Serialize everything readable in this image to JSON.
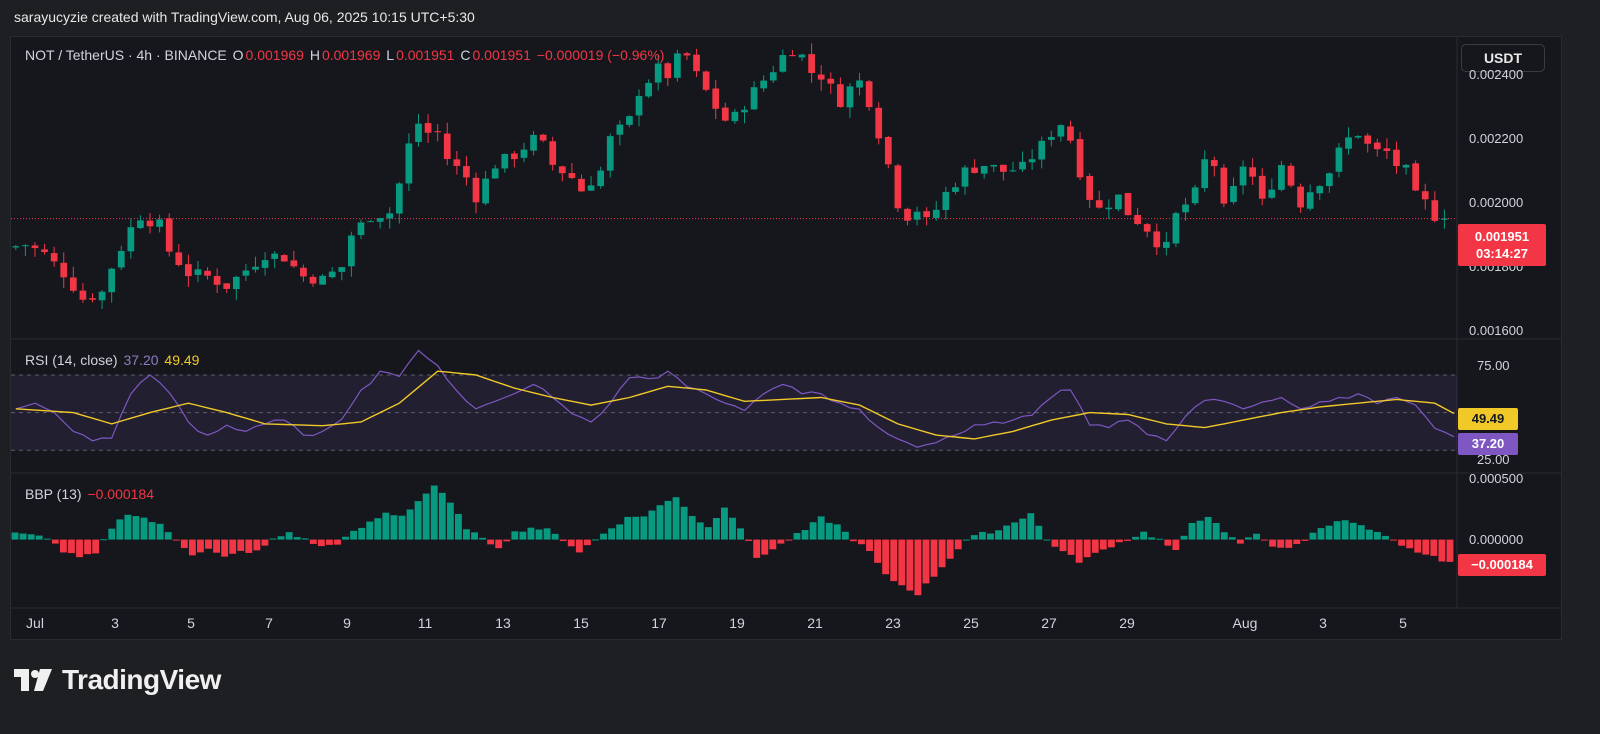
{
  "caption": "sarayucyzie created with TradingView.com, Aug 06, 2025 10:15 UTC+5:30",
  "header": {
    "symbol": "NOT / TetherUS · 4h · BINANCE",
    "o_label": "O",
    "o_value": "0.001969",
    "h_label": "H",
    "h_value": "0.001969",
    "l_label": "L",
    "l_value": "0.001951",
    "c_label": "C",
    "c_value": "0.001951",
    "change": "−0.000019 (−0.96%)"
  },
  "currency_button": "USDT",
  "price_tag": {
    "price": "0.001951",
    "countdown": "03:14:27"
  },
  "rsi_legend": {
    "label": "RSI (14, close)",
    "rsi": "37.20",
    "ma": "49.49"
  },
  "bbp_legend": {
    "label": "BBP (13)",
    "value": "−0.000184"
  },
  "brand": "TradingView",
  "colors": {
    "up": "#089981",
    "down": "#f23645",
    "rsi": "#7e57c2",
    "rsi_ma": "#f0c929",
    "bg": "#16171c"
  },
  "chart_data": [
    {
      "type": "candlestick",
      "y_ticks": [
        "0.002400",
        "0.002200",
        "0.002000",
        "0.001800",
        "0.001600"
      ],
      "ylim": [
        0.00158,
        0.00252
      ],
      "x_ticks": [
        "Jul",
        "3",
        "5",
        "7",
        "9",
        "11",
        "13",
        "15",
        "17",
        "19",
        "21",
        "23",
        "25",
        "27",
        "29",
        "Aug",
        "3",
        "5"
      ],
      "current_price": 0.001951,
      "close_path": [
        [
          0,
          0.00186
        ],
        [
          2,
          0.00187
        ],
        [
          4,
          0.00184
        ],
        [
          6,
          0.00178
        ],
        [
          8,
          0.0017
        ],
        [
          10,
          0.00172
        ],
        [
          11,
          0.0018
        ],
        [
          13,
          0.00192
        ],
        [
          14,
          0.00196
        ],
        [
          16,
          0.00193
        ],
        [
          17,
          0.00185
        ],
        [
          19,
          0.00178
        ],
        [
          21,
          0.00177
        ],
        [
          23,
          0.00174
        ],
        [
          25,
          0.00179
        ],
        [
          27,
          0.00184
        ],
        [
          29,
          0.00183
        ],
        [
          31,
          0.00177
        ],
        [
          33,
          0.00176
        ],
        [
          35,
          0.0018
        ],
        [
          36,
          0.0019
        ],
        [
          38,
          0.00196
        ],
        [
          40,
          0.00197
        ],
        [
          41,
          0.00206
        ],
        [
          42,
          0.00218
        ],
        [
          43,
          0.00225
        ],
        [
          44,
          0.00222
        ],
        [
          45,
          0.00222
        ],
        [
          46,
          0.00214
        ],
        [
          48,
          0.00208
        ],
        [
          49,
          0.00202
        ],
        [
          51,
          0.00212
        ],
        [
          53,
          0.00215
        ],
        [
          55,
          0.0022
        ],
        [
          56,
          0.00218
        ],
        [
          57,
          0.00212
        ],
        [
          59,
          0.00208
        ],
        [
          60,
          0.00204
        ],
        [
          62,
          0.0021
        ],
        [
          63,
          0.0022
        ],
        [
          65,
          0.00226
        ],
        [
          66,
          0.00235
        ],
        [
          68,
          0.00242
        ],
        [
          69,
          0.0024
        ],
        [
          70,
          0.00245
        ],
        [
          71,
          0.00246
        ],
        [
          72,
          0.0024
        ],
        [
          74,
          0.0023
        ],
        [
          75,
          0.00226
        ],
        [
          76,
          0.00227
        ],
        [
          78,
          0.00235
        ],
        [
          80,
          0.00242
        ],
        [
          81,
          0.00246
        ],
        [
          82,
          0.00248
        ],
        [
          83,
          0.00246
        ],
        [
          84,
          0.00241
        ],
        [
          85,
          0.0024
        ],
        [
          86,
          0.00236
        ],
        [
          87,
          0.00232
        ],
        [
          88,
          0.00236
        ],
        [
          89,
          0.00238
        ],
        [
          90,
          0.00232
        ],
        [
          91,
          0.00222
        ],
        [
          92,
          0.00212
        ],
        [
          93,
          0.002
        ],
        [
          94,
          0.00196
        ],
        [
          95,
          0.00198
        ],
        [
          96,
          0.00194
        ],
        [
          97,
          0.00198
        ],
        [
          98,
          0.00203
        ],
        [
          100,
          0.0021
        ],
        [
          102,
          0.00212
        ],
        [
          104,
          0.0021
        ],
        [
          106,
          0.00211
        ],
        [
          108,
          0.00218
        ],
        [
          109,
          0.00222
        ],
        [
          110,
          0.00225
        ],
        [
          111,
          0.0022
        ],
        [
          112,
          0.0021
        ],
        [
          113,
          0.00202
        ],
        [
          114,
          0.00198
        ],
        [
          116,
          0.00202
        ],
        [
          117,
          0.00197
        ],
        [
          119,
          0.00192
        ],
        [
          120,
          0.00188
        ],
        [
          121,
          0.00186
        ],
        [
          122,
          0.00196
        ],
        [
          124,
          0.00203
        ],
        [
          125,
          0.00213
        ],
        [
          126,
          0.00212
        ],
        [
          127,
          0.00198
        ],
        [
          128,
          0.00204
        ],
        [
          129,
          0.00212
        ],
        [
          130,
          0.00208
        ],
        [
          131,
          0.002
        ],
        [
          132,
          0.00206
        ],
        [
          133,
          0.00212
        ],
        [
          134,
          0.00206
        ],
        [
          135,
          0.002
        ],
        [
          136,
          0.00204
        ],
        [
          138,
          0.0021
        ],
        [
          139,
          0.00216
        ],
        [
          140,
          0.0022
        ],
        [
          141,
          0.00222
        ],
        [
          142,
          0.00218
        ],
        [
          143,
          0.00216
        ],
        [
          144,
          0.00216
        ],
        [
          145,
          0.00212
        ],
        [
          146,
          0.0021
        ],
        [
          147,
          0.00202
        ],
        [
          148,
          0.002
        ],
        [
          149,
          0.00196
        ],
        [
          150,
          0.001951
        ]
      ]
    },
    {
      "type": "line",
      "name": "RSI (14, close)",
      "y_ticks": [
        "75.00",
        "25.00"
      ],
      "ylim": [
        20,
        87
      ],
      "band": [
        30,
        70
      ],
      "rsi_path": [
        [
          0,
          52
        ],
        [
          2,
          55
        ],
        [
          4,
          50
        ],
        [
          6,
          40
        ],
        [
          8,
          35
        ],
        [
          10,
          38
        ],
        [
          12,
          60
        ],
        [
          14,
          70
        ],
        [
          16,
          62
        ],
        [
          18,
          45
        ],
        [
          20,
          38
        ],
        [
          22,
          42
        ],
        [
          24,
          40
        ],
        [
          26,
          44
        ],
        [
          28,
          48
        ],
        [
          30,
          38
        ],
        [
          32,
          40
        ],
        [
          34,
          46
        ],
        [
          36,
          62
        ],
        [
          38,
          72
        ],
        [
          40,
          70
        ],
        [
          42,
          83
        ],
        [
          44,
          75
        ],
        [
          46,
          60
        ],
        [
          48,
          52
        ],
        [
          50,
          56
        ],
        [
          52,
          60
        ],
        [
          54,
          65
        ],
        [
          56,
          58
        ],
        [
          58,
          50
        ],
        [
          60,
          45
        ],
        [
          62,
          55
        ],
        [
          64,
          70
        ],
        [
          66,
          68
        ],
        [
          68,
          72
        ],
        [
          70,
          65
        ],
        [
          72,
          60
        ],
        [
          74,
          55
        ],
        [
          76,
          52
        ],
        [
          78,
          60
        ],
        [
          80,
          65
        ],
        [
          82,
          62
        ],
        [
          84,
          60
        ],
        [
          86,
          55
        ],
        [
          88,
          50
        ],
        [
          90,
          42
        ],
        [
          92,
          36
        ],
        [
          94,
          32
        ],
        [
          96,
          34
        ],
        [
          98,
          38
        ],
        [
          100,
          42
        ],
        [
          102,
          45
        ],
        [
          104,
          46
        ],
        [
          106,
          50
        ],
        [
          108,
          58
        ],
        [
          110,
          62
        ],
        [
          112,
          45
        ],
        [
          114,
          42
        ],
        [
          116,
          46
        ],
        [
          118,
          40
        ],
        [
          120,
          35
        ],
        [
          122,
          48
        ],
        [
          124,
          58
        ],
        [
          126,
          56
        ],
        [
          128,
          52
        ],
        [
          130,
          55
        ],
        [
          132,
          58
        ],
        [
          134,
          52
        ],
        [
          136,
          54
        ],
        [
          138,
          58
        ],
        [
          140,
          60
        ],
        [
          142,
          56
        ],
        [
          144,
          58
        ],
        [
          146,
          54
        ],
        [
          148,
          42
        ],
        [
          150,
          37.2
        ]
      ],
      "ma_path": [
        [
          0,
          52
        ],
        [
          6,
          50
        ],
        [
          10,
          44
        ],
        [
          14,
          50
        ],
        [
          18,
          55
        ],
        [
          22,
          50
        ],
        [
          26,
          44
        ],
        [
          32,
          43
        ],
        [
          36,
          45
        ],
        [
          40,
          55
        ],
        [
          44,
          72
        ],
        [
          48,
          70
        ],
        [
          52,
          63
        ],
        [
          56,
          58
        ],
        [
          60,
          54
        ],
        [
          64,
          58
        ],
        [
          68,
          64
        ],
        [
          72,
          62
        ],
        [
          76,
          56
        ],
        [
          80,
          57
        ],
        [
          84,
          58
        ],
        [
          88,
          54
        ],
        [
          92,
          44
        ],
        [
          96,
          38
        ],
        [
          100,
          36
        ],
        [
          104,
          40
        ],
        [
          108,
          46
        ],
        [
          112,
          50
        ],
        [
          116,
          49
        ],
        [
          120,
          44
        ],
        [
          124,
          42
        ],
        [
          128,
          46
        ],
        [
          132,
          50
        ],
        [
          136,
          53
        ],
        [
          140,
          55
        ],
        [
          144,
          57
        ],
        [
          148,
          55
        ],
        [
          150,
          49.49
        ]
      ]
    },
    {
      "type": "bar",
      "name": "BBP (13)",
      "y_ticks": [
        "0.000500",
        "0.000000"
      ],
      "ylim": [
        -0.00056,
        0.00052
      ],
      "values_path": [
        [
          0,
          5e-05
        ],
        [
          4,
          2e-05
        ],
        [
          6,
          -0.0001
        ],
        [
          8,
          -0.00015
        ],
        [
          10,
          -0.00012
        ],
        [
          12,
          0.0001
        ],
        [
          14,
          0.00022
        ],
        [
          16,
          0.00018
        ],
        [
          18,
          0.00012
        ],
        [
          20,
          0.0
        ],
        [
          22,
          -0.00012
        ],
        [
          24,
          -8e-05
        ],
        [
          26,
          -0.00015
        ],
        [
          28,
          -0.0001
        ],
        [
          30,
          -0.0001
        ],
        [
          32,
          0.0
        ],
        [
          34,
          6e-05
        ],
        [
          36,
          0.0
        ],
        [
          38,
          -6e-05
        ],
        [
          40,
          -3e-05
        ],
        [
          42,
          6e-05
        ],
        [
          44,
          0.00014
        ],
        [
          46,
          0.00022
        ],
        [
          48,
          0.0002
        ],
        [
          50,
          0.00032
        ],
        [
          52,
          0.00045
        ],
        [
          54,
          0.0003
        ],
        [
          56,
          0.0001
        ],
        [
          58,
          0.0
        ],
        [
          60,
          -6e-05
        ],
        [
          62,
          6e-05
        ],
        [
          64,
          0.0001
        ],
        [
          66,
          8e-05
        ],
        [
          68,
          0.0
        ],
        [
          70,
          -0.0001
        ],
        [
          72,
          0.0
        ],
        [
          74,
          0.0001
        ],
        [
          76,
          0.00018
        ],
        [
          78,
          0.0002
        ],
        [
          80,
          0.00028
        ],
        [
          82,
          0.00036
        ],
        [
          84,
          0.0002
        ],
        [
          86,
          0.0001
        ],
        [
          88,
          0.00028
        ],
        [
          90,
          0.0001
        ],
        [
          92,
          -0.00015
        ],
        [
          94,
          -8e-05
        ],
        [
          96,
          0.0
        ],
        [
          98,
          8e-05
        ],
        [
          100,
          0.00018
        ],
        [
          102,
          0.00012
        ],
        [
          104,
          0.0
        ],
        [
          106,
          -0.0001
        ],
        [
          108,
          -0.0003
        ],
        [
          110,
          -0.00038
        ],
        [
          112,
          -0.00045
        ],
        [
          114,
          -0.0003
        ],
        [
          116,
          -0.00015
        ],
        [
          118,
          0.0
        ],
        [
          120,
          5e-05
        ],
        [
          122,
          8e-05
        ],
        [
          124,
          0.00015
        ],
        [
          126,
          0.00022
        ],
        [
          128,
          0.0
        ],
        [
          130,
          -0.0001
        ],
        [
          132,
          -0.00018
        ],
        [
          134,
          -0.00012
        ],
        [
          136,
          -5e-05
        ],
        [
          138,
          0.0
        ],
        [
          140,
          6e-05
        ],
        [
          142,
          0.0
        ],
        [
          144,
          -0.0001
        ],
        [
          146,
          0.00014
        ],
        [
          148,
          0.0002
        ],
        [
          150,
          5e-05
        ],
        [
          152,
          -3e-05
        ],
        [
          154,
          5e-05
        ],
        [
          156,
          -5e-05
        ],
        [
          158,
          -8e-05
        ],
        [
          160,
          0.0
        ],
        [
          162,
          0.0001
        ],
        [
          164,
          0.00016
        ],
        [
          166,
          0.00014
        ],
        [
          168,
          8e-05
        ],
        [
          170,
          2e-05
        ],
        [
          172,
          -6e-05
        ],
        [
          174,
          -0.0001
        ],
        [
          176,
          -0.00015
        ],
        [
          178,
          -0.000184
        ]
      ]
    }
  ]
}
